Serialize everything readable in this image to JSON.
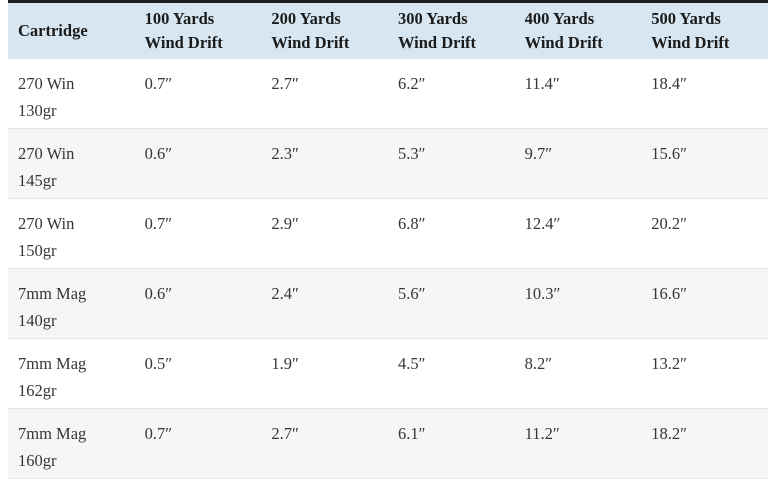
{
  "colors": {
    "header_bg": "#d7e6f1",
    "top_border": "#1d1d1d",
    "row_alt_bg": "#f6f6f6",
    "row_border": "#e4e4e4",
    "header_text": "#1b1b1b",
    "body_text": "#363636"
  },
  "table": {
    "columns": [
      {
        "line1": "Cartridge",
        "line2": ""
      },
      {
        "line1": "100 Yards",
        "line2": "Wind Drift"
      },
      {
        "line1": "200 Yards",
        "line2": "Wind Drift"
      },
      {
        "line1": "300 Yards",
        "line2": "Wind Drift"
      },
      {
        "line1": "400 Yards",
        "line2": "Wind Drift"
      },
      {
        "line1": "500 Yards",
        "line2": "Wind Drift"
      }
    ],
    "rows": [
      {
        "name": "270 Win",
        "weight": "130gr",
        "values": [
          "0.7″",
          "2.7″",
          "6.2″",
          "11.4″",
          "18.4″"
        ]
      },
      {
        "name": "270 Win",
        "weight": "145gr",
        "values": [
          "0.6″",
          "2.3″",
          "5.3″",
          "9.7″",
          "15.6″"
        ]
      },
      {
        "name": "270 Win",
        "weight": "150gr",
        "values": [
          "0.7″",
          "2.9″",
          "6.8″",
          "12.4″",
          "20.2″"
        ]
      },
      {
        "name": "7mm Mag",
        "weight": "140gr",
        "values": [
          "0.6″",
          "2.4″",
          "5.6″",
          "10.3″",
          "16.6″"
        ]
      },
      {
        "name": "7mm Mag",
        "weight": "162gr",
        "values": [
          "0.5″",
          "1.9″",
          "4.5″",
          "8.2″",
          "13.2″"
        ]
      },
      {
        "name": "7mm Mag",
        "weight": "160gr",
        "values": [
          "0.7″",
          "2.7″",
          "6.1″",
          "11.2″",
          "18.2″"
        ]
      }
    ]
  },
  "chart_data": {
    "type": "table",
    "title": "",
    "columns": [
      "Cartridge",
      "100 Yards Wind Drift",
      "200 Yards Wind Drift",
      "300 Yards Wind Drift",
      "400 Yards Wind Drift",
      "500 Yards Wind Drift"
    ],
    "categories": [
      "270 Win 130gr",
      "270 Win 145gr",
      "270 Win 150gr",
      "7mm Mag 140gr",
      "7mm Mag 162gr",
      "7mm Mag 160gr"
    ],
    "series": [
      {
        "name": "100 Yards Wind Drift",
        "values": [
          0.7,
          0.6,
          0.7,
          0.6,
          0.5,
          0.7
        ]
      },
      {
        "name": "200 Yards Wind Drift",
        "values": [
          2.7,
          2.3,
          2.9,
          2.4,
          1.9,
          2.7
        ]
      },
      {
        "name": "300 Yards Wind Drift",
        "values": [
          6.2,
          5.3,
          6.8,
          5.6,
          4.5,
          6.1
        ]
      },
      {
        "name": "400 Yards Wind Drift",
        "values": [
          11.4,
          9.7,
          12.4,
          10.3,
          8.2,
          11.2
        ]
      },
      {
        "name": "500 Yards Wind Drift",
        "values": [
          18.4,
          15.6,
          20.2,
          16.6,
          13.2,
          18.2
        ]
      }
    ],
    "unit": "inches"
  }
}
